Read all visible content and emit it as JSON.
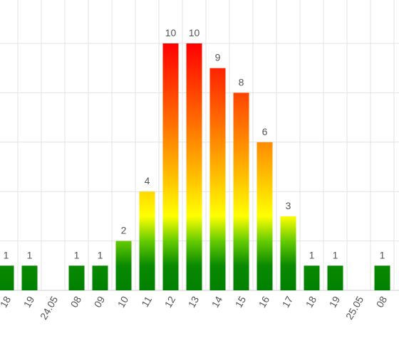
{
  "chart_data": {
    "type": "bar",
    "categories": [
      "18",
      "19",
      "24.05",
      "08",
      "09",
      "10",
      "11",
      "12",
      "13",
      "14",
      "15",
      "16",
      "17",
      "18",
      "19",
      "25.05",
      "08"
    ],
    "values": [
      1,
      1,
      null,
      1,
      1,
      2,
      4,
      10,
      10,
      9,
      8,
      6,
      3,
      1,
      1,
      null,
      1
    ],
    "ylim": [
      0,
      10
    ],
    "grid": true,
    "color_scale": [
      {
        "value": 0,
        "color": "#008000"
      },
      {
        "value": 1,
        "color": "#0a8a00"
      },
      {
        "value": 2,
        "color": "#66cc00"
      },
      {
        "value": 3,
        "color": "#ffff00"
      },
      {
        "value": 5,
        "color": "#ffb000"
      },
      {
        "value": 7,
        "color": "#ff6600"
      },
      {
        "value": 10,
        "color": "#ff0000"
      }
    ]
  }
}
